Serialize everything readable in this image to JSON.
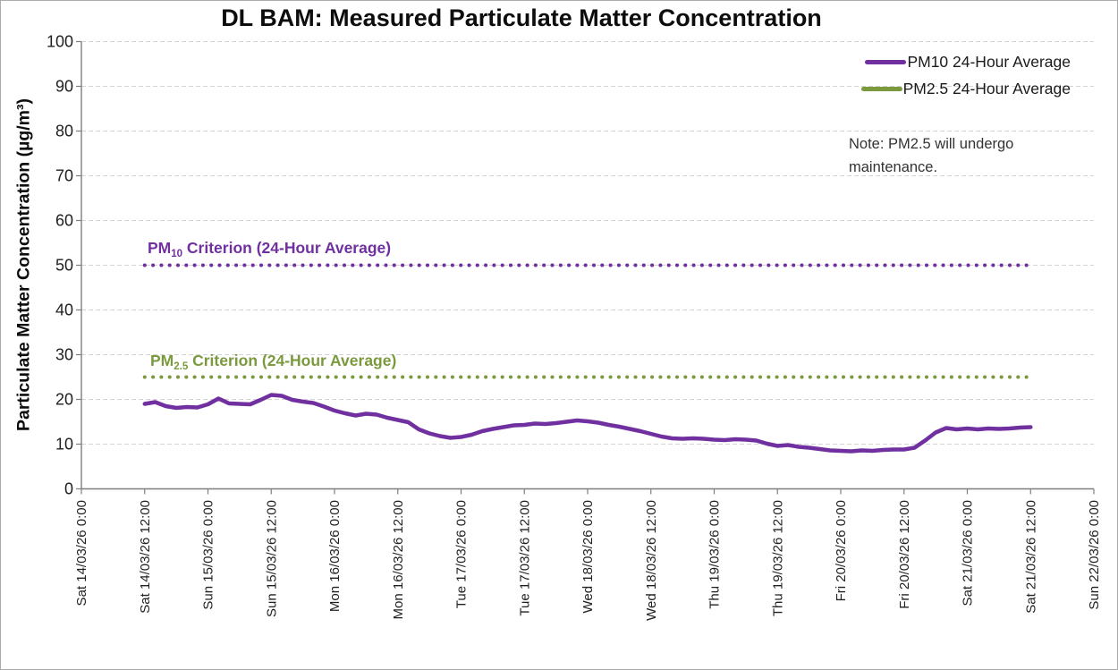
{
  "title": "DL BAM: Measured Particulate Matter Concentration",
  "note": {
    "text": "Note: PM2.5 will undergo maintenance."
  },
  "chart_data": {
    "type": "line",
    "title": "DL BAM: Measured Particulate Matter Concentration",
    "xlabel": "",
    "ylabel": "Particulate Matter Concentration (µg/m³)",
    "ylim": [
      0,
      100
    ],
    "y_ticks": [
      0,
      10,
      20,
      30,
      40,
      50,
      60,
      70,
      80,
      90,
      100
    ],
    "x_tick_labels": [
      "Sat 14/03/26 0:00",
      "Sat 14/03/26 12:00",
      "Sun 15/03/26 0:00",
      "Sun 15/03/26 12:00",
      "Mon 16/03/26 0:00",
      "Mon 16/03/26 12:00",
      "Tue 17/03/26 0:00",
      "Tue 17/03/26 12:00",
      "Wed 18/03/26 0:00",
      "Wed 18/03/26 12:00",
      "Thu 19/03/26 0:00",
      "Thu 19/03/26 12:00",
      "Fri 20/03/26 0:00",
      "Fri 20/03/26 12:00",
      "Sat 21/03/26 0:00",
      "Sat 21/03/26 12:00",
      "Sun 22/03/26 0:00"
    ],
    "grid": "horizontal-dashed",
    "legend_position": "top-right",
    "series": [
      {
        "name": "PM10 24-Hour Average",
        "color": "#7030A0",
        "start_tick_index": 1,
        "hours_per_tick": 12,
        "sample_interval_hours": 2,
        "x_start_label": "Sat 14/03/26 12:00",
        "x_end_label": "Sat 21/03/26 12:00",
        "values": [
          19.0,
          19.4,
          18.5,
          18.1,
          18.3,
          18.2,
          18.9,
          20.2,
          19.1,
          19.0,
          18.9,
          19.9,
          21.0,
          20.8,
          19.9,
          19.5,
          19.2,
          18.4,
          17.5,
          16.9,
          16.4,
          16.8,
          16.6,
          15.9,
          15.4,
          14.9,
          13.3,
          12.4,
          11.8,
          11.4,
          11.6,
          12.1,
          12.9,
          13.4,
          13.8,
          14.2,
          14.3,
          14.6,
          14.5,
          14.7,
          15.0,
          15.3,
          15.1,
          14.8,
          14.3,
          13.9,
          13.4,
          12.9,
          12.3,
          11.7,
          11.3,
          11.2,
          11.3,
          11.2,
          11.0,
          10.9,
          11.1,
          11.0,
          10.8,
          10.1,
          9.6,
          9.8,
          9.4,
          9.2,
          8.9,
          8.6,
          8.5,
          8.4,
          8.6,
          8.5,
          8.7,
          8.8,
          8.8,
          9.2,
          10.8,
          12.6,
          13.6,
          13.3,
          13.5,
          13.3,
          13.5,
          13.4,
          13.5,
          13.7,
          13.8
        ]
      },
      {
        "name": "PM2.5 24-Hour Average",
        "color": "#7A9A3D",
        "values": []
      }
    ],
    "reference_lines": [
      {
        "label_prefix": "PM",
        "label_sub": "10",
        "label_rest": " Criterion (24-Hour Average)",
        "value": 50,
        "color": "#7030A0",
        "style": "dotted",
        "start_tick_index": 1,
        "end_tick_index": 15
      },
      {
        "label_prefix": "PM",
        "label_sub": "2.5",
        "label_rest": " Criterion (24-Hour Average)",
        "value": 25,
        "color": "#7A9A3D",
        "style": "dotted",
        "start_tick_index": 1,
        "end_tick_index": 15
      }
    ]
  }
}
